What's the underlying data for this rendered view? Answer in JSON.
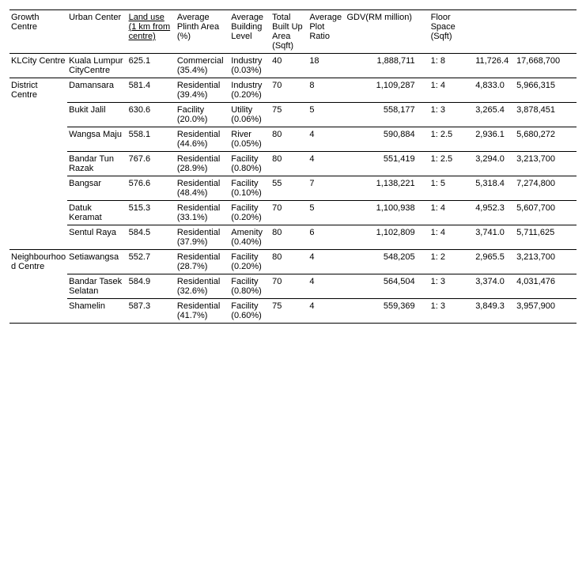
{
  "headers": {
    "growth": "Growth Centre",
    "urban": "Urban Center",
    "land": "Land use (1 km from centre)",
    "plinth": "Average Plinth Area (%)",
    "bldg": "Average Building Level",
    "builtup": "Total Built Up Area (Sqft)",
    "plot": "Average Plot Ratio",
    "gdv": "GDV(RM million)",
    "floor": "Floor Space (Sqft)"
  },
  "rows": [
    {
      "group": "KLCity Centre",
      "urban": "Kuala Lumpur CityCentre",
      "land": "625.1",
      "plinth": "Commercial (35.4%)",
      "bldg": "Industry (0.03%)",
      "builtup": "40",
      "plot": "18",
      "gdv": "1,888,711",
      "floor": "1: 8",
      "x1": "11,726.4",
      "x2": "17,668,700"
    },
    {
      "group": "District Centre",
      "urban": "Damansara",
      "land": "581.4",
      "plinth": "Residential (39.4%)",
      "bldg": "Industry (0.20%)",
      "builtup": "70",
      "plot": "8",
      "gdv": "1,109,287",
      "floor": "1: 4",
      "x1": "4,833.0",
      "x2": "5,966,315"
    },
    {
      "group": "",
      "urban": "Bukit Jalil",
      "land": "630.6",
      "plinth": "Facility (20.0%)",
      "bldg": "Utility (0.06%)",
      "builtup": "75",
      "plot": "5",
      "gdv": "558,177",
      "floor": "1: 3",
      "x1": "3,265.4",
      "x2": "3,878,451"
    },
    {
      "group": "",
      "urban": "Wangsa Maju",
      "land": "558.1",
      "plinth": "Residential (44.6%)",
      "bldg": "River (0.05%)",
      "builtup": "80",
      "plot": "4",
      "gdv": "590,884",
      "floor": "1: 2.5",
      "x1": "2,936.1",
      "x2": "5,680,272"
    },
    {
      "group": "",
      "urban": "Bandar Tun Razak",
      "land": "767.6",
      "plinth": "Residential (28.9%)",
      "bldg": "Facility (0.80%)",
      "builtup": "80",
      "plot": "4",
      "gdv": "551,419",
      "floor": "1: 2.5",
      "x1": "3,294.0",
      "x2": "3,213,700"
    },
    {
      "group": "",
      "urban": "Bangsar",
      "land": "576.6",
      "plinth": "Residential (48.4%)",
      "bldg": "Facility (0.10%)",
      "builtup": "55",
      "plot": "7",
      "gdv": "1,138,221",
      "floor": "1: 5",
      "x1": "5,318.4",
      "x2": "7,274,800"
    },
    {
      "group": "",
      "urban": "Datuk Keramat",
      "land": "515.3",
      "plinth": "Residential (33.1%)",
      "bldg": "Facility (0.20%)",
      "builtup": "70",
      "plot": "5",
      "gdv": "1,100,938",
      "floor": "1: 4",
      "x1": "4,952.3",
      "x2": "5,607,700"
    },
    {
      "group": "",
      "urban": "Sentul Raya",
      "land": "584.5",
      "plinth": "Residential (37.9%)",
      "bldg": "Amenity (0.40%)",
      "builtup": "80",
      "plot": "6",
      "gdv": "1,102,809",
      "floor": "1: 4",
      "x1": "3,741.0",
      "x2": "5,711,625"
    },
    {
      "group": "Neighbourhood Centre",
      "urban": "Setiawangsa",
      "land": "552.7",
      "plinth": "Residential (28.7%)",
      "bldg": "Facility (0.20%)",
      "builtup": "80",
      "plot": "4",
      "gdv": "548,205",
      "floor": "1: 2",
      "x1": "2,965.5",
      "x2": "3,213,700"
    },
    {
      "group": "",
      "urban": "Bandar Tasek Selatan",
      "land": "584.9",
      "plinth": "Residential (32.6%)",
      "bldg": "Facility (0.80%)",
      "builtup": "70",
      "plot": "4",
      "gdv": "564,504",
      "floor": "1: 3",
      "x1": "3,374.0",
      "x2": "4,031,476"
    },
    {
      "group": "",
      "urban": "Shamelin",
      "land": "587.3",
      "plinth": "Residential (41.7%)",
      "bldg": "Facility (0.60%)",
      "builtup": "75",
      "plot": "4",
      "gdv": "559,369",
      "floor": "1: 3",
      "x1": "3,849.3",
      "x2": "3,957,900"
    }
  ],
  "style": {
    "font_family": "Arial",
    "font_size_pt": 8,
    "text_color": "#000000",
    "background_color": "#ffffff",
    "border_color": "#000000"
  }
}
